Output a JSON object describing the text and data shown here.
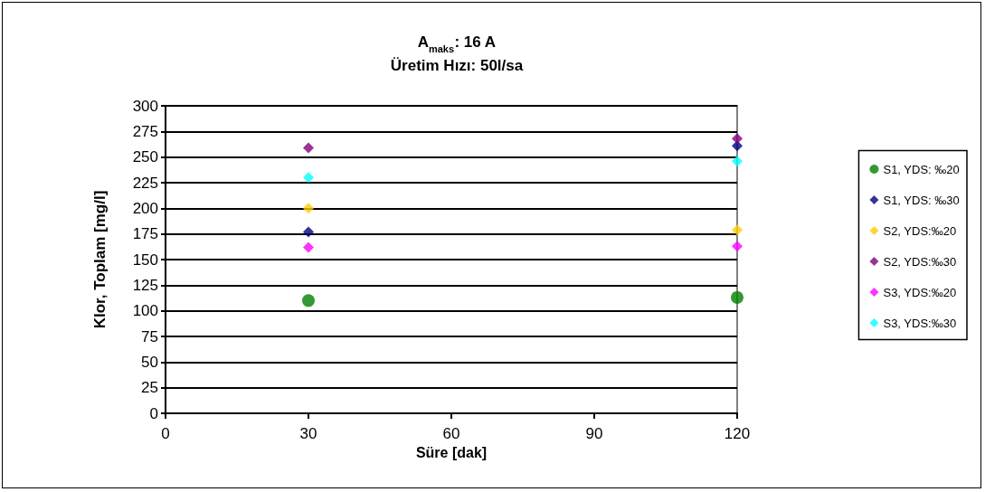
{
  "chart_data": {
    "type": "scatter",
    "title": "A$_{maks}$: 16 A",
    "subtitle": "Üretim Hızı: 50l/sa",
    "xlabel": "Süre [dak]",
    "ylabel": "Klor, Toplam [mg/l]",
    "x": [
      30,
      120
    ],
    "series": [
      {
        "name": "S1, YDS: ‰20",
        "color": "#008000",
        "marker": "circle",
        "values": [
          110,
          113
        ]
      },
      {
        "name": "S1, YDS: ‰30",
        "color": "#000080",
        "marker": "diamond",
        "values": [
          177,
          261
        ]
      },
      {
        "name": "S2, YDS:‰20",
        "color": "#ffcc00",
        "marker": "diamond",
        "values": [
          200,
          179
        ]
      },
      {
        "name": "S2, YDS:‰30",
        "color": "#800080",
        "marker": "diamond",
        "values": [
          259,
          268
        ]
      },
      {
        "name": "S3, YDS:‰20",
        "color": "#ff00ff",
        "marker": "diamond",
        "values": [
          162,
          163
        ]
      },
      {
        "name": "S3, YDS:‰30",
        "color": "#00ffff",
        "marker": "diamond",
        "values": [
          230,
          246
        ]
      }
    ],
    "xlim": [
      0,
      120
    ],
    "xticks": [
      0,
      30,
      60,
      90,
      120
    ],
    "ylim": [
      0,
      300
    ],
    "yticks": [
      0,
      25,
      50,
      75,
      100,
      125,
      150,
      175,
      200,
      225,
      250,
      275,
      300
    ],
    "grid": "y",
    "legend": "right"
  }
}
